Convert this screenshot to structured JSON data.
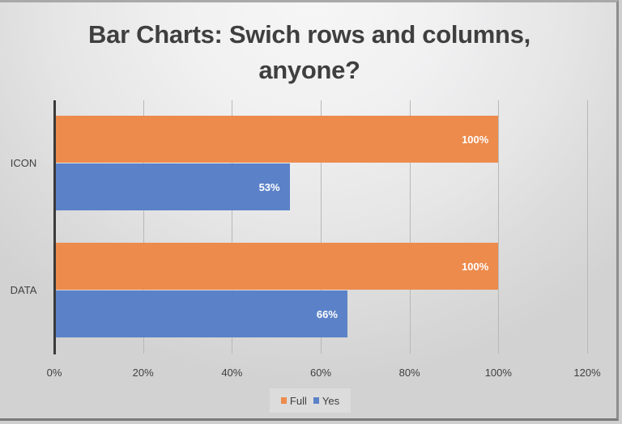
{
  "chart_data": {
    "type": "bar",
    "orientation": "horizontal",
    "title": "Bar Charts: Swich rows and columns, anyone?",
    "title_lines": [
      "Bar Charts: Swich rows and columns,",
      "anyone?"
    ],
    "categories": [
      "ICON",
      "DATA"
    ],
    "series": [
      {
        "name": "Full",
        "color": "#ED8B4C",
        "values": [
          100,
          100
        ],
        "labels": [
          "100%",
          "100%"
        ]
      },
      {
        "name": "Yes",
        "color": "#5B82C8",
        "values": [
          53,
          66
        ],
        "labels": [
          "53%",
          "66%"
        ]
      }
    ],
    "xlabel": "",
    "ylabel": "",
    "xlim": [
      0,
      120
    ],
    "x_ticks": [
      "0%",
      "20%",
      "40%",
      "60%",
      "80%",
      "100%",
      "120%"
    ],
    "grid": "vertical",
    "legend_position": "bottom"
  }
}
